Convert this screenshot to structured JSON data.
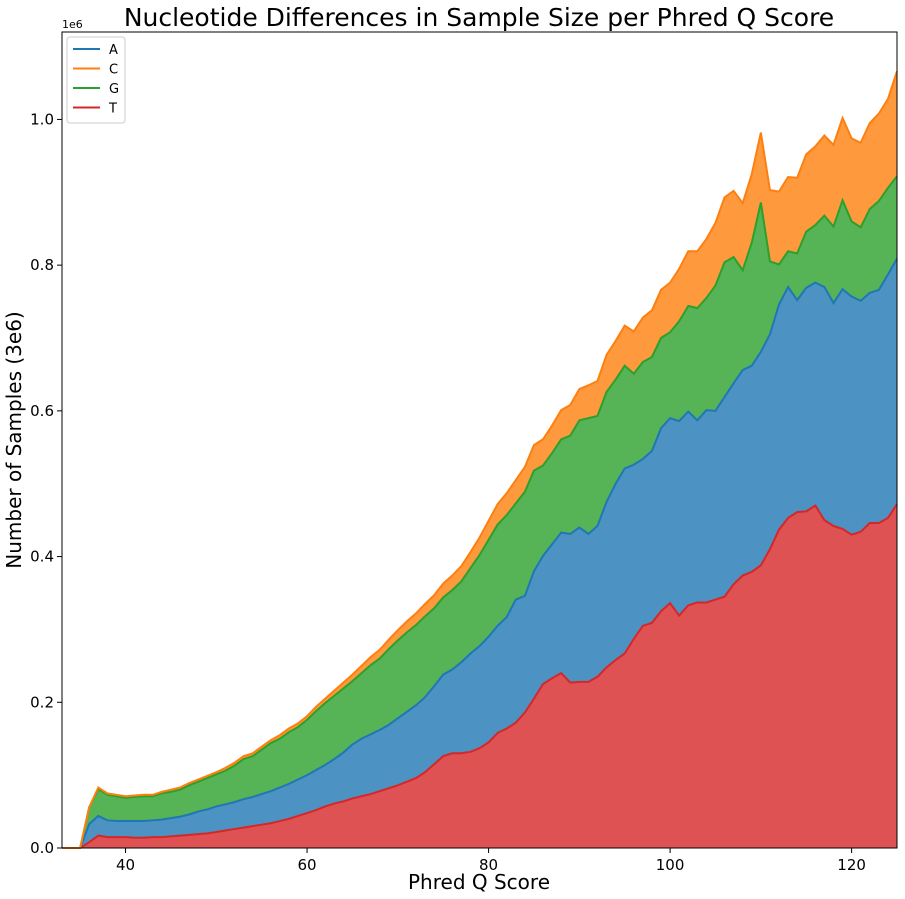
{
  "chart_data": {
    "type": "area",
    "stacked": true,
    "title": "Nucleotide Differences in Sample Size per Phred Q Score",
    "xlabel": "Phred Q Score",
    "ylabel": "Number of Samples (3e6)",
    "y_offset_label": "1e6",
    "xlim": [
      33,
      125
    ],
    "ylim": [
      0,
      1.12
    ],
    "xticks": [
      40,
      60,
      80,
      100,
      120
    ],
    "yticks": [
      "0.0",
      "0.2",
      "0.4",
      "0.6",
      "0.8",
      "1.0"
    ],
    "ytick_values": [
      0,
      0.2,
      0.4,
      0.6,
      0.8,
      1.0
    ],
    "legend_position": "upper-left",
    "grid": false,
    "x": [
      33,
      34,
      35,
      36,
      37,
      38,
      39,
      40,
      41,
      42,
      43,
      44,
      45,
      46,
      47,
      48,
      49,
      50,
      51,
      52,
      53,
      54,
      55,
      56,
      57,
      58,
      59,
      60,
      61,
      62,
      63,
      64,
      65,
      66,
      67,
      68,
      69,
      70,
      71,
      72,
      73,
      74,
      75,
      76,
      77,
      78,
      79,
      80,
      81,
      82,
      83,
      84,
      85,
      86,
      87,
      88,
      89,
      90,
      91,
      92,
      93,
      94,
      95,
      96,
      97,
      98,
      99,
      100,
      101,
      102,
      103,
      104,
      105,
      106,
      107,
      108,
      109,
      110,
      111,
      112,
      113,
      114,
      115,
      116,
      117,
      118,
      119,
      120,
      121,
      122,
      123,
      124,
      125
    ],
    "series": [
      {
        "name": "T",
        "color": "#d62728",
        "values": [
          0,
          0,
          0,
          0.008,
          0.017,
          0.015,
          0.015,
          0.015,
          0.014,
          0.014,
          0.015,
          0.015,
          0.016,
          0.017,
          0.018,
          0.019,
          0.02,
          0.022,
          0.024,
          0.026,
          0.028,
          0.03,
          0.032,
          0.034,
          0.037,
          0.04,
          0.044,
          0.048,
          0.052,
          0.057,
          0.061,
          0.064,
          0.068,
          0.071,
          0.074,
          0.078,
          0.082,
          0.086,
          0.091,
          0.096,
          0.104,
          0.115,
          0.126,
          0.13,
          0.13,
          0.132,
          0.137,
          0.145,
          0.158,
          0.164,
          0.172,
          0.186,
          0.205,
          0.225,
          0.233,
          0.24,
          0.227,
          0.228,
          0.228,
          0.235,
          0.248,
          0.258,
          0.267,
          0.287,
          0.305,
          0.309,
          0.325,
          0.336,
          0.319,
          0.333,
          0.337,
          0.337,
          0.341,
          0.345,
          0.362,
          0.374,
          0.379,
          0.388,
          0.41,
          0.437,
          0.453,
          0.461,
          0.462,
          0.47,
          0.45,
          0.442,
          0.438,
          0.43,
          0.434,
          0.446,
          0.446,
          0.453,
          0.472
        ]
      },
      {
        "name": "A",
        "color": "#1f77b4",
        "values": [
          0,
          0,
          0,
          0.025,
          0.027,
          0.023,
          0.022,
          0.022,
          0.023,
          0.023,
          0.023,
          0.024,
          0.025,
          0.026,
          0.028,
          0.031,
          0.033,
          0.035,
          0.036,
          0.037,
          0.039,
          0.04,
          0.042,
          0.044,
          0.046,
          0.048,
          0.05,
          0.052,
          0.055,
          0.057,
          0.061,
          0.067,
          0.074,
          0.079,
          0.082,
          0.084,
          0.087,
          0.092,
          0.096,
          0.1,
          0.103,
          0.107,
          0.112,
          0.115,
          0.125,
          0.135,
          0.14,
          0.145,
          0.147,
          0.153,
          0.169,
          0.16,
          0.175,
          0.176,
          0.184,
          0.193,
          0.204,
          0.212,
          0.203,
          0.207,
          0.227,
          0.242,
          0.254,
          0.239,
          0.229,
          0.236,
          0.251,
          0.254,
          0.267,
          0.266,
          0.25,
          0.264,
          0.259,
          0.274,
          0.276,
          0.282,
          0.283,
          0.293,
          0.295,
          0.309,
          0.317,
          0.291,
          0.307,
          0.306,
          0.32,
          0.306,
          0.329,
          0.327,
          0.317,
          0.316,
          0.32,
          0.334,
          0.337
        ]
      },
      {
        "name": "G",
        "color": "#2ca02c",
        "values": [
          0,
          0,
          0,
          0.023,
          0.037,
          0.035,
          0.034,
          0.032,
          0.033,
          0.034,
          0.033,
          0.036,
          0.036,
          0.037,
          0.04,
          0.041,
          0.043,
          0.044,
          0.046,
          0.05,
          0.055,
          0.056,
          0.061,
          0.066,
          0.067,
          0.071,
          0.072,
          0.076,
          0.081,
          0.085,
          0.087,
          0.088,
          0.087,
          0.09,
          0.095,
          0.098,
          0.104,
          0.107,
          0.109,
          0.11,
          0.111,
          0.107,
          0.106,
          0.109,
          0.111,
          0.117,
          0.125,
          0.133,
          0.139,
          0.14,
          0.132,
          0.143,
          0.138,
          0.124,
          0.125,
          0.128,
          0.135,
          0.147,
          0.159,
          0.151,
          0.151,
          0.143,
          0.141,
          0.125,
          0.133,
          0.129,
          0.124,
          0.118,
          0.137,
          0.145,
          0.154,
          0.154,
          0.172,
          0.185,
          0.173,
          0.137,
          0.169,
          0.205,
          0.1,
          0.055,
          0.049,
          0.064,
          0.077,
          0.079,
          0.098,
          0.105,
          0.122,
          0.103,
          0.101,
          0.115,
          0.122,
          0.119,
          0.113
        ]
      },
      {
        "name": "C",
        "color": "#ff7f0e",
        "values": [
          0,
          0,
          0,
          0,
          0.002,
          0.002,
          0.002,
          0.002,
          0.002,
          0.002,
          0.002,
          0.002,
          0.003,
          0.003,
          0.003,
          0.003,
          0.003,
          0.003,
          0.004,
          0.004,
          0.004,
          0.004,
          0.004,
          0.004,
          0.005,
          0.005,
          0.005,
          0.005,
          0.006,
          0.006,
          0.007,
          0.008,
          0.009,
          0.01,
          0.011,
          0.012,
          0.013,
          0.014,
          0.015,
          0.016,
          0.017,
          0.018,
          0.019,
          0.02,
          0.021,
          0.022,
          0.024,
          0.026,
          0.028,
          0.03,
          0.032,
          0.034,
          0.035,
          0.036,
          0.038,
          0.04,
          0.042,
          0.043,
          0.045,
          0.048,
          0.051,
          0.053,
          0.055,
          0.058,
          0.061,
          0.064,
          0.066,
          0.068,
          0.072,
          0.075,
          0.078,
          0.081,
          0.086,
          0.089,
          0.091,
          0.092,
          0.094,
          0.096,
          0.098,
          0.1,
          0.102,
          0.104,
          0.106,
          0.108,
          0.11,
          0.112,
          0.113,
          0.114,
          0.116,
          0.118,
          0.12,
          0.122,
          0.144
        ]
      }
    ]
  }
}
